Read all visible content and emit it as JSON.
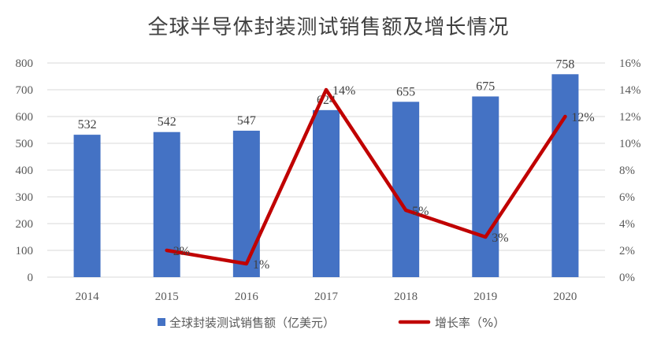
{
  "title": "全球半导体封装测试销售额及增长情况",
  "chart_data": {
    "type": "bar",
    "title": "全球半导体封装测试销售额及增长情况",
    "categories": [
      "2014",
      "2015",
      "2016",
      "2017",
      "2018",
      "2019",
      "2020"
    ],
    "series": [
      {
        "name": "全球封装测试销售额（亿美元）",
        "type": "bar",
        "axis": "left",
        "values": [
          532,
          542,
          547,
          624,
          655,
          675,
          758
        ],
        "labels": [
          "532",
          "542",
          "547",
          "624",
          "655",
          "675",
          "758"
        ]
      },
      {
        "name": "增长率（%）",
        "type": "line",
        "axis": "right",
        "values": [
          null,
          2,
          1,
          14,
          5,
          3,
          12
        ],
        "labels": [
          "",
          "2%",
          "1%",
          "14%",
          "5%",
          "3%",
          "12%"
        ]
      }
    ],
    "left_axis": {
      "ylim": [
        0,
        800
      ],
      "ticks": [
        "0",
        "100",
        "200",
        "300",
        "400",
        "500",
        "600",
        "700",
        "800"
      ]
    },
    "right_axis": {
      "ylim": [
        0,
        16
      ],
      "ticks": [
        "0%",
        "2%",
        "4%",
        "6%",
        "8%",
        "10%",
        "12%",
        "14%",
        "16%"
      ]
    },
    "grid": true,
    "legend_position": "bottom",
    "colors": {
      "bar": "#4472C4",
      "line": "#C00000",
      "grid": "#D9D9D9"
    }
  }
}
